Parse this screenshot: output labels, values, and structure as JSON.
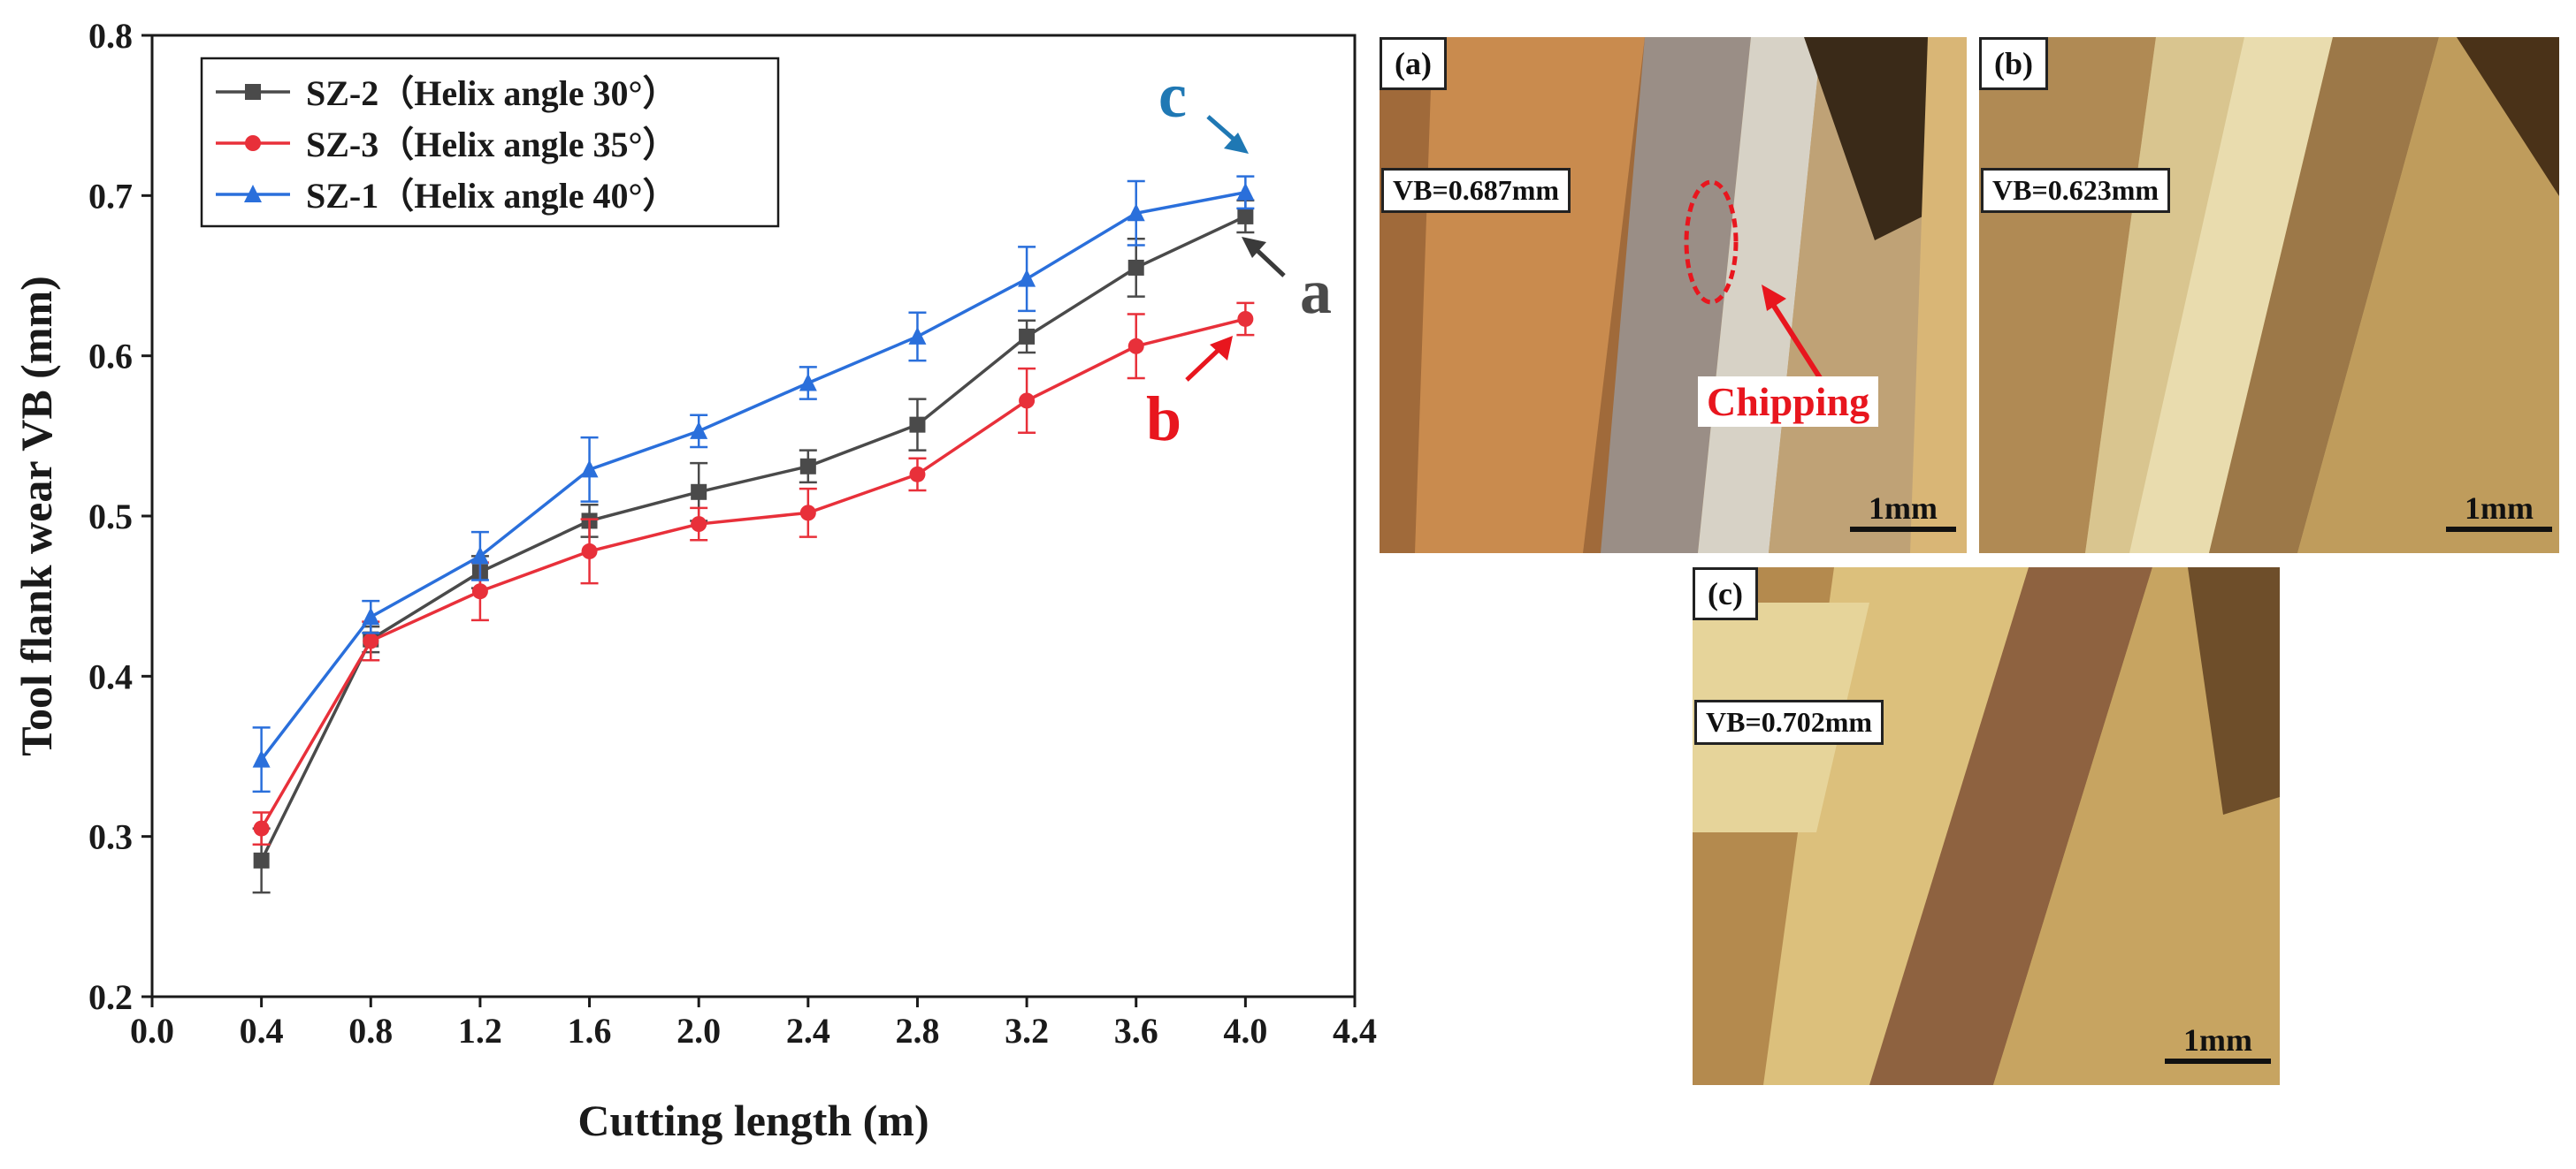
{
  "chart_data": {
    "type": "line",
    "xlabel": "Cutting length (m)",
    "ylabel": "Tool flank wear VB (mm)",
    "xlim": [
      0.0,
      4.4
    ],
    "ylim": [
      0.2,
      0.8
    ],
    "xticks": [
      "0.0",
      "0.4",
      "0.8",
      "1.2",
      "1.6",
      "2.0",
      "2.4",
      "2.8",
      "3.2",
      "3.6",
      "4.0",
      "4.4"
    ],
    "yticks": [
      "0.2",
      "0.3",
      "0.4",
      "0.5",
      "0.6",
      "0.7",
      "0.8"
    ],
    "legend_position": "top-left",
    "x": [
      0.4,
      0.8,
      1.2,
      1.6,
      2.0,
      2.4,
      2.8,
      3.2,
      3.6,
      4.0
    ],
    "series": [
      {
        "name": "SZ-2（Helix angle 30°）",
        "color": "#4a4a4a",
        "marker": "square",
        "values": [
          0.285,
          0.423,
          0.465,
          0.497,
          0.515,
          0.531,
          0.557,
          0.612,
          0.655,
          0.687
        ],
        "errors": [
          0.02,
          0.008,
          0.01,
          0.01,
          0.018,
          0.01,
          0.016,
          0.01,
          0.018,
          0.01
        ]
      },
      {
        "name": "SZ-3（Helix angle 35°）",
        "color": "#e8303a",
        "marker": "circle",
        "values": [
          0.305,
          0.422,
          0.453,
          0.478,
          0.495,
          0.502,
          0.526,
          0.572,
          0.606,
          0.623
        ],
        "errors": [
          0.01,
          0.012,
          0.018,
          0.02,
          0.01,
          0.015,
          0.01,
          0.02,
          0.02,
          0.01
        ]
      },
      {
        "name": "SZ-1（Helix angle 40°）",
        "color": "#2a6fdb",
        "marker": "triangle",
        "values": [
          0.348,
          0.437,
          0.475,
          0.529,
          0.553,
          0.583,
          0.612,
          0.648,
          0.689,
          0.702
        ],
        "errors": [
          0.02,
          0.01,
          0.015,
          0.02,
          0.01,
          0.01,
          0.015,
          0.02,
          0.02,
          0.01
        ]
      }
    ],
    "annotations": [
      {
        "text": "a",
        "color": "#4a4a4a"
      },
      {
        "text": "b",
        "color": "#e8161e"
      },
      {
        "text": "c",
        "color": "#1f78b4"
      }
    ]
  },
  "photos": [
    {
      "label": "(a)",
      "vb": "VB=0.687mm",
      "scale": "1mm",
      "note": "Chipping"
    },
    {
      "label": "(b)",
      "vb": "VB=0.623mm",
      "scale": "1mm"
    },
    {
      "label": "(c)",
      "vb": "VB=0.702mm",
      "scale": "1mm"
    }
  ]
}
